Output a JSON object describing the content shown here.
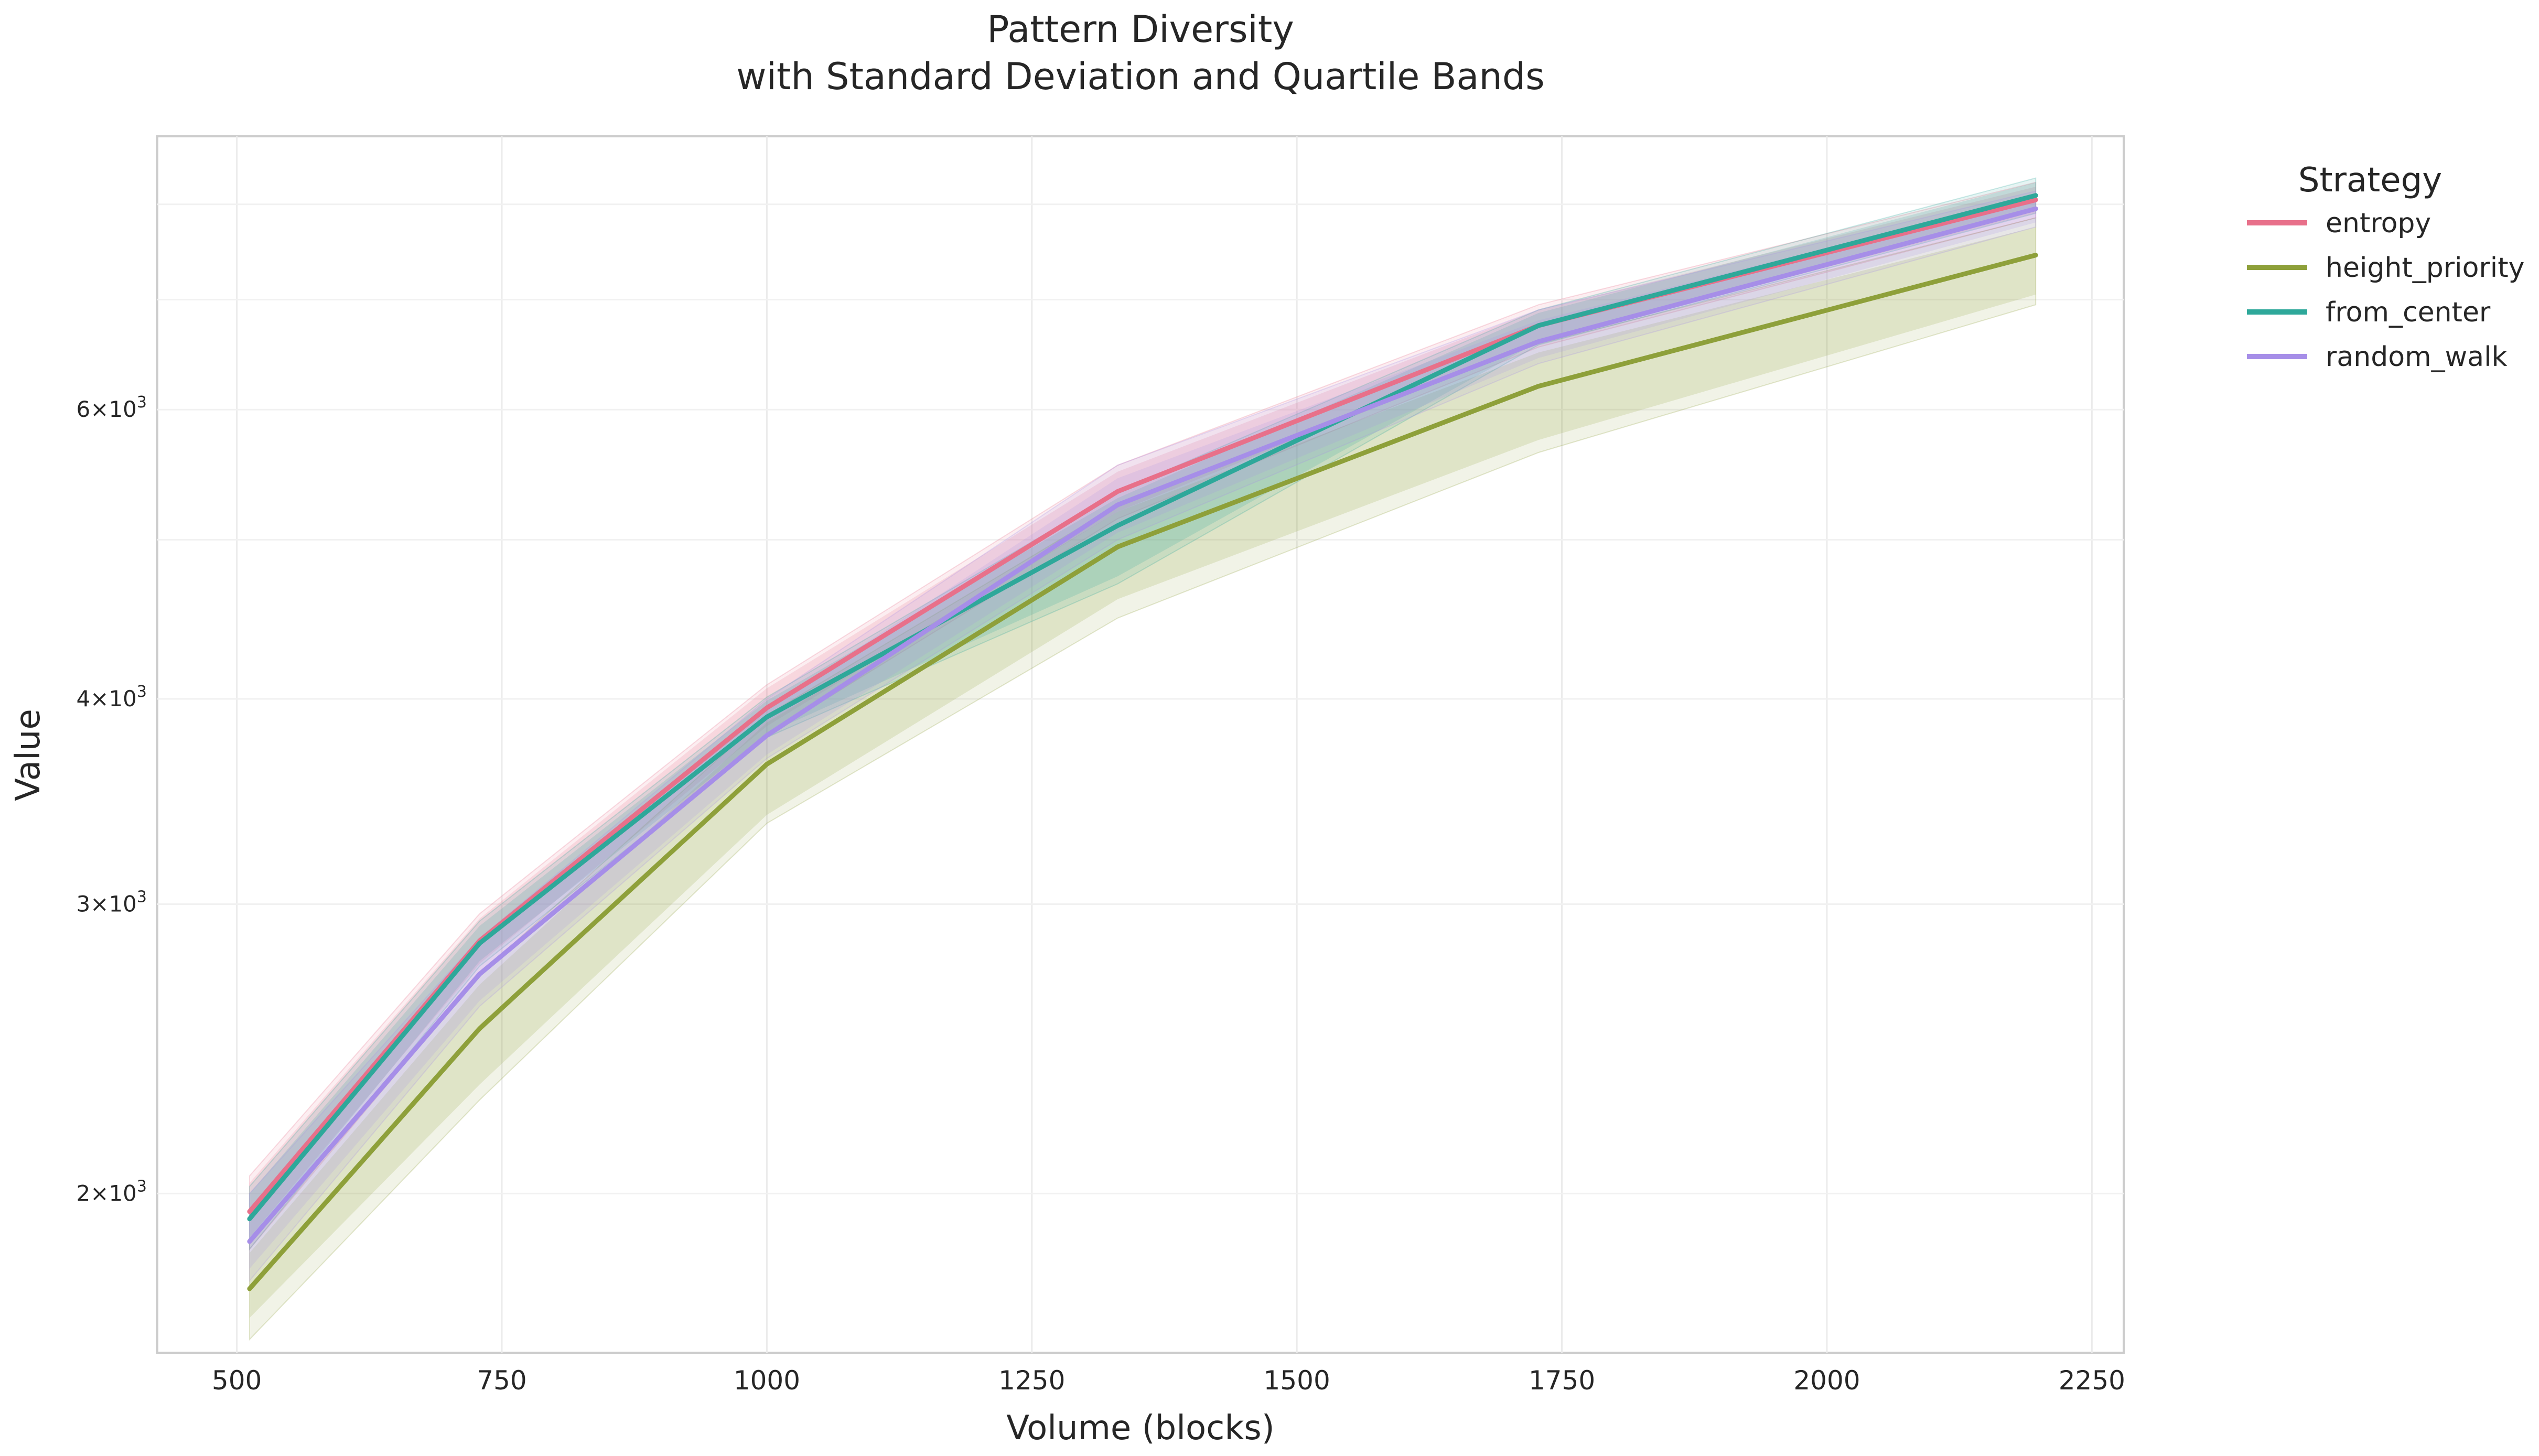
{
  "chart_data": {
    "type": "line",
    "title": "Pattern Diversity",
    "subtitle": "with Standard Deviation and Quartile Bands",
    "xlabel": "Volume (blocks)",
    "ylabel": "Value",
    "x_ticks": [
      500,
      750,
      1000,
      1250,
      1500,
      1750,
      2000,
      2250
    ],
    "y_scale": "log",
    "y_ticks": [
      {
        "value": 2000,
        "mantissa": "2",
        "base": "10",
        "exp": "3"
      },
      {
        "value": 3000,
        "mantissa": "3",
        "base": "10",
        "exp": "3"
      },
      {
        "value": 4000,
        "mantissa": "4",
        "base": "10",
        "exp": "3"
      },
      {
        "value": 6000,
        "mantissa": "6",
        "base": "10",
        "exp": "3"
      }
    ],
    "xlim": [
      425,
      2280
    ],
    "ylim": [
      1600,
      8800
    ],
    "grid": true,
    "legend": {
      "title": "Strategy",
      "placement": "outside-right"
    },
    "x": [
      512,
      729,
      1000,
      1331,
      1728,
      2197
    ],
    "series": [
      {
        "name": "entropy",
        "color": "#e8708a",
        "values": [
          1950,
          2850,
          3950,
          5350,
          6750,
          8050
        ],
        "std_low": [
          1880,
          2760,
          3850,
          5200,
          6600,
          7900
        ],
        "std_high": [
          2030,
          2940,
          4060,
          5500,
          6900,
          8200
        ],
        "q_low": [
          1850,
          2720,
          3800,
          5150,
          6550,
          7850
        ],
        "q_high": [
          2050,
          2960,
          4080,
          5550,
          6950,
          8250
        ]
      },
      {
        "name": "height_priority",
        "color": "#8ea03a",
        "values": [
          1750,
          2520,
          3650,
          4950,
          6200,
          7450
        ],
        "std_low": [
          1680,
          2330,
          3400,
          4600,
          5750,
          7050
        ],
        "std_high": [
          1840,
          2680,
          3870,
          5200,
          6500,
          7750
        ],
        "q_low": [
          1630,
          2280,
          3360,
          4480,
          5650,
          6950
        ],
        "q_high": [
          1870,
          2720,
          3910,
          5250,
          6580,
          7850
        ]
      },
      {
        "name": "from_center",
        "color": "#2ea89a",
        "values": [
          1930,
          2840,
          3900,
          5100,
          6750,
          8100
        ],
        "std_low": [
          1870,
          2770,
          3810,
          4750,
          6600,
          7950
        ],
        "std_high": [
          2000,
          2910,
          3990,
          5300,
          6870,
          8250
        ],
        "q_low": [
          1850,
          2750,
          3790,
          4700,
          6570,
          7900
        ],
        "q_high": [
          2020,
          2930,
          4010,
          5350,
          6900,
          8300
        ]
      },
      {
        "name": "random_walk",
        "color": "#a68ee8",
        "values": [
          1870,
          2720,
          3800,
          5250,
          6600,
          7950
        ],
        "std_low": [
          1800,
          2620,
          3700,
          5050,
          6450,
          7800
        ],
        "std_high": [
          1960,
          2830,
          3950,
          5450,
          6800,
          8100
        ],
        "q_low": [
          1770,
          2600,
          3680,
          5000,
          6400,
          7750
        ],
        "q_high": [
          2000,
          2860,
          4000,
          5550,
          6900,
          8150
        ]
      }
    ]
  }
}
